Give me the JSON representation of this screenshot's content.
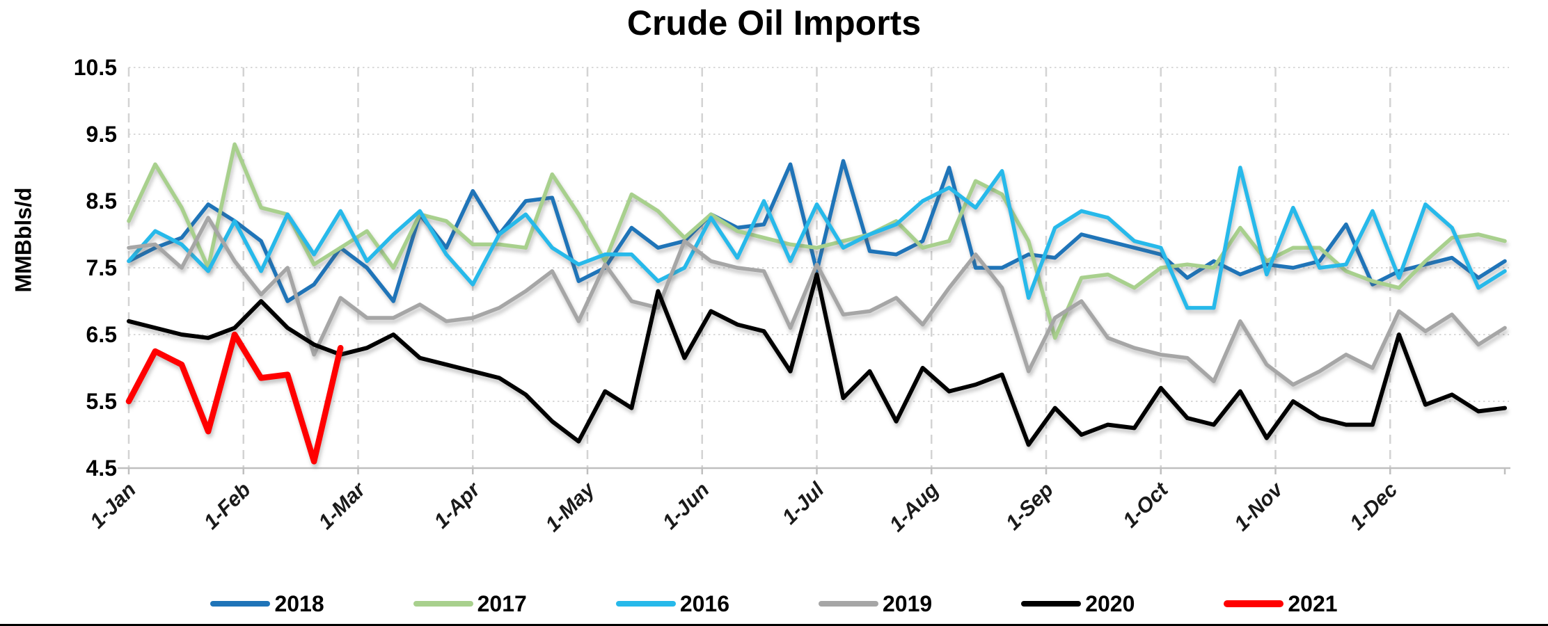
{
  "chart_data": {
    "type": "line",
    "title": "Crude Oil Imports",
    "ylabel": "MMBbls/d",
    "y_axis": {
      "min": 4.5,
      "max": 10.5,
      "tick_step": 1.0,
      "tick_labels": [
        "10.5",
        "9.5",
        "8.5",
        "7.5",
        "6.5",
        "5.5",
        "4.5"
      ]
    },
    "x_axis": {
      "tick_labels": [
        "1-Jan",
        "1-Feb",
        "1-Mar",
        "1-Apr",
        "1-May",
        "1-Jun",
        "1-Jul",
        "1-Aug",
        "1-Sep",
        "1-Oct",
        "1-Nov",
        "1-Dec"
      ],
      "frequency": "weekly",
      "points_per_full_year": 53
    },
    "grid": {
      "horizontal": "dotted",
      "vertical": "dashed",
      "gridline_color": "#D9D9D9",
      "axis_line_color": "#BFBFBF"
    },
    "legend_position": "bottom",
    "series": [
      {
        "name": "2018",
        "color": "#1F74B8",
        "width": 5.5,
        "values": [
          7.6,
          7.8,
          7.95,
          8.45,
          8.2,
          7.9,
          7.0,
          7.25,
          7.8,
          7.5,
          7.0,
          8.3,
          7.8,
          8.65,
          8.0,
          8.5,
          8.55,
          7.3,
          7.5,
          8.1,
          7.8,
          7.9,
          8.3,
          8.1,
          8.15,
          9.05,
          7.45,
          9.1,
          7.75,
          7.7,
          7.9,
          9.0,
          7.5,
          7.5,
          7.7,
          7.65,
          8.0,
          7.9,
          7.8,
          7.7,
          7.35,
          7.6,
          7.4,
          7.55,
          7.5,
          7.6,
          8.15,
          7.25,
          7.45,
          7.55,
          7.65,
          7.35,
          7.6
        ]
      },
      {
        "name": "2017",
        "color": "#A8D08D",
        "width": 5.5,
        "values": [
          8.2,
          9.05,
          8.4,
          7.5,
          9.35,
          8.4,
          8.3,
          7.55,
          7.8,
          8.05,
          7.5,
          8.3,
          8.2,
          7.85,
          7.85,
          7.8,
          8.9,
          8.3,
          7.6,
          8.6,
          8.35,
          7.95,
          8.3,
          8.05,
          7.95,
          7.85,
          7.8,
          7.9,
          8.0,
          8.2,
          7.8,
          7.9,
          8.8,
          8.6,
          7.9,
          6.45,
          7.35,
          7.4,
          7.2,
          7.5,
          7.55,
          7.5,
          8.1,
          7.6,
          7.8,
          7.8,
          7.45,
          7.3,
          7.2,
          7.6,
          7.95,
          8.0,
          7.9
        ]
      },
      {
        "name": "2016",
        "color": "#27B9EA",
        "width": 5.5,
        "values": [
          7.6,
          8.05,
          7.85,
          7.45,
          8.2,
          7.45,
          8.3,
          7.7,
          8.35,
          7.6,
          8.0,
          8.35,
          7.7,
          7.25,
          8.0,
          8.3,
          7.8,
          7.55,
          7.7,
          7.7,
          7.3,
          7.5,
          8.25,
          7.65,
          8.5,
          7.6,
          8.45,
          7.8,
          8.0,
          8.15,
          8.5,
          8.7,
          8.4,
          8.95,
          7.05,
          8.1,
          8.35,
          8.25,
          7.9,
          7.8,
          6.9,
          6.9,
          9.0,
          7.4,
          8.4,
          7.5,
          7.55,
          8.35,
          7.35,
          8.45,
          8.1,
          7.2,
          7.45
        ]
      },
      {
        "name": "2019",
        "color": "#A6A6A6",
        "width": 5.5,
        "values": [
          7.8,
          7.85,
          7.5,
          8.25,
          7.6,
          7.1,
          7.5,
          6.2,
          7.05,
          6.75,
          6.75,
          6.95,
          6.7,
          6.75,
          6.9,
          7.15,
          7.45,
          6.7,
          7.55,
          7.0,
          6.9,
          7.9,
          7.6,
          7.5,
          7.45,
          6.6,
          7.55,
          6.8,
          6.85,
          7.05,
          6.65,
          7.2,
          7.7,
          7.2,
          5.95,
          6.75,
          7.0,
          6.45,
          6.3,
          6.2,
          6.15,
          5.8,
          6.7,
          6.05,
          5.75,
          5.95,
          6.2,
          6.0,
          6.85,
          6.55,
          6.8,
          6.35,
          6.6
        ]
      },
      {
        "name": "2020",
        "color": "#000000",
        "width": 6,
        "values": [
          6.7,
          6.6,
          6.5,
          6.45,
          6.6,
          7.0,
          6.6,
          6.35,
          6.2,
          6.3,
          6.5,
          6.15,
          6.05,
          5.95,
          5.85,
          5.6,
          5.2,
          4.9,
          5.65,
          5.4,
          7.15,
          6.15,
          6.85,
          6.65,
          6.55,
          5.95,
          7.4,
          5.55,
          5.95,
          5.2,
          6.0,
          5.65,
          5.75,
          5.9,
          4.85,
          5.4,
          5.0,
          5.15,
          5.1,
          5.7,
          5.25,
          5.15,
          5.65,
          4.95,
          5.5,
          5.25,
          5.15,
          5.15,
          6.5,
          5.45,
          5.6,
          5.35,
          5.4
        ]
      },
      {
        "name": "2021",
        "color": "#FF0000",
        "width": 8.5,
        "values": [
          5.5,
          6.25,
          6.05,
          5.05,
          6.5,
          5.85,
          5.9,
          4.6,
          6.3
        ]
      }
    ]
  }
}
